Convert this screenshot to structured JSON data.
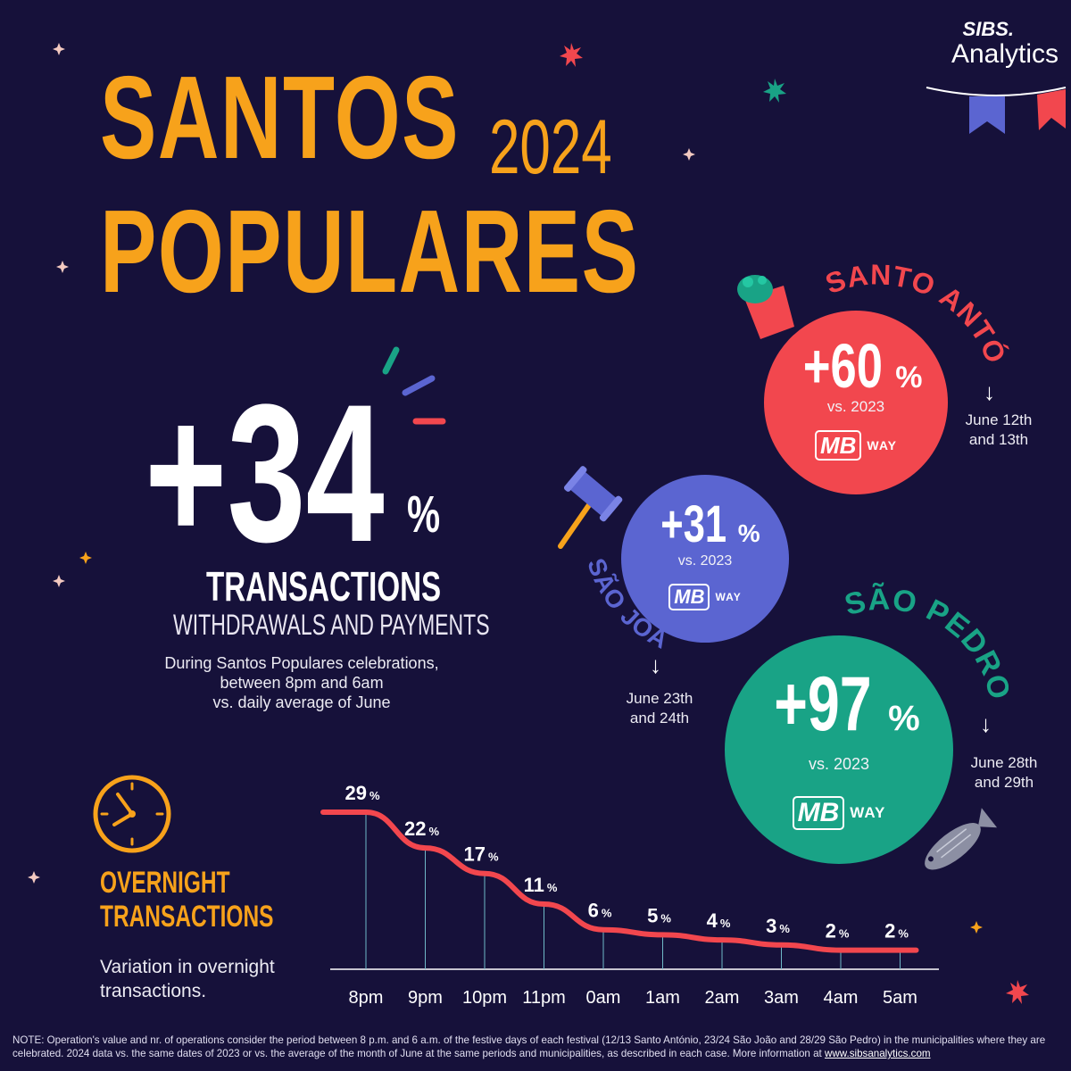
{
  "brand": {
    "name": "SIBS.",
    "product": "Analytics"
  },
  "title": {
    "line1": "SANTOS",
    "year": "2024",
    "line2": "POPULARES"
  },
  "headline": {
    "value": "+34",
    "unit": "%",
    "label": "TRANSACTIONS",
    "sublabel": "WITHDRAWALS AND PAYMENTS",
    "description_lines": [
      "During Santos Populares celebrations,",
      "between 8pm and 6am",
      "vs. daily average of June"
    ]
  },
  "festivals": [
    {
      "name": "SANTO ANTÓNIO",
      "value": "+60",
      "unit": "%",
      "comparison": "vs. 2023",
      "payment_logo": "MB",
      "payment_word": "WAY",
      "dates": [
        "June 12th",
        "and 13th"
      ],
      "color": "#f2474e"
    },
    {
      "name": "SÃO JOÃO",
      "value": "+31",
      "unit": "%",
      "comparison": "vs. 2023",
      "payment_logo": "MB",
      "payment_word": "WAY",
      "dates": [
        "June 23th",
        "and 24th"
      ],
      "color": "#5b65d1"
    },
    {
      "name": "SÃO PEDRO",
      "value": "+97",
      "unit": "%",
      "comparison": "vs. 2023",
      "payment_logo": "MB",
      "payment_word": "WAY",
      "dates": [
        "June 28th",
        "and 29th"
      ],
      "color": "#19a386"
    }
  ],
  "overnight": {
    "title_line1": "OVERNIGHT",
    "title_line2": "TRANSACTIONS",
    "description": "Variation in overnight transactions.",
    "icon": "clock-icon"
  },
  "chart_data": {
    "type": "line",
    "categories": [
      "8pm",
      "9pm",
      "10pm",
      "11pm",
      "0am",
      "1am",
      "2am",
      "3am",
      "4am",
      "5am"
    ],
    "values": [
      29,
      22,
      17,
      11,
      6,
      5,
      4,
      3,
      2,
      2
    ],
    "value_suffix": "%",
    "line_color": "#f2474e",
    "title": "",
    "xlabel": "",
    "ylabel": "",
    "grid": false
  },
  "note": {
    "text": "NOTE: Operation's value and nr. of operations consider the period between 8 p.m. and 6 a.m. of the festive days of each festival (12/13 Santo António, 23/24 São João and 28/29 São Pedro) in the municipalities where they are celebrated. 2024 data vs. the same dates of 2023 or vs. the average of the month of June at the same periods and municipalities, as described in each case. More information at ",
    "link": "www.sibsanalytics.com"
  }
}
